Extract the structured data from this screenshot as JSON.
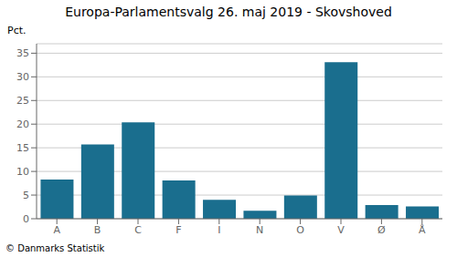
{
  "chart_data": {
    "type": "bar",
    "title": "Europa-Parlamentsvalg 26. maj 2019 - Skovshoved",
    "categories": [
      "A",
      "B",
      "C",
      "F",
      "I",
      "N",
      "O",
      "V",
      "Ø",
      "Å"
    ],
    "values": [
      8.3,
      15.7,
      20.4,
      8.1,
      4.0,
      1.7,
      4.9,
      33.1,
      2.9,
      2.6
    ],
    "color": "#1a6e8e",
    "ylabel": "Pct.",
    "ylim": [
      0,
      37
    ],
    "yticks": [
      0,
      5,
      10,
      15,
      20,
      25,
      30,
      35
    ],
    "grid": true,
    "annotations": [
      "© Danmarks Statistik"
    ]
  }
}
